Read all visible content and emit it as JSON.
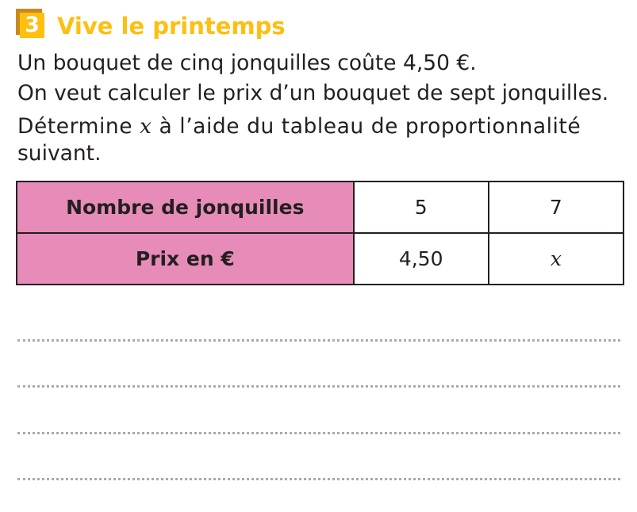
{
  "exercise": {
    "number": "3",
    "title": "Vive le printemps",
    "accent_color": "#fdbf10",
    "header_color": "#e78cb9"
  },
  "statement": {
    "line1": "Un bouquet de cinq jonquilles coûte 4,50 €.",
    "line2": "On veut calculer le prix d’un bouquet de sept jonquilles.",
    "line3_before": "Détermine ",
    "line3_var": "x",
    "line3_after": " à l’aide du tableau de proportionnalité",
    "line4": "suivant."
  },
  "table": {
    "rows": [
      {
        "header": "Nombre de jonquilles",
        "values": [
          "5",
          "7"
        ]
      },
      {
        "header": "Prix en €",
        "values": [
          "4,50",
          "x"
        ]
      }
    ]
  },
  "answer_lines": 4
}
